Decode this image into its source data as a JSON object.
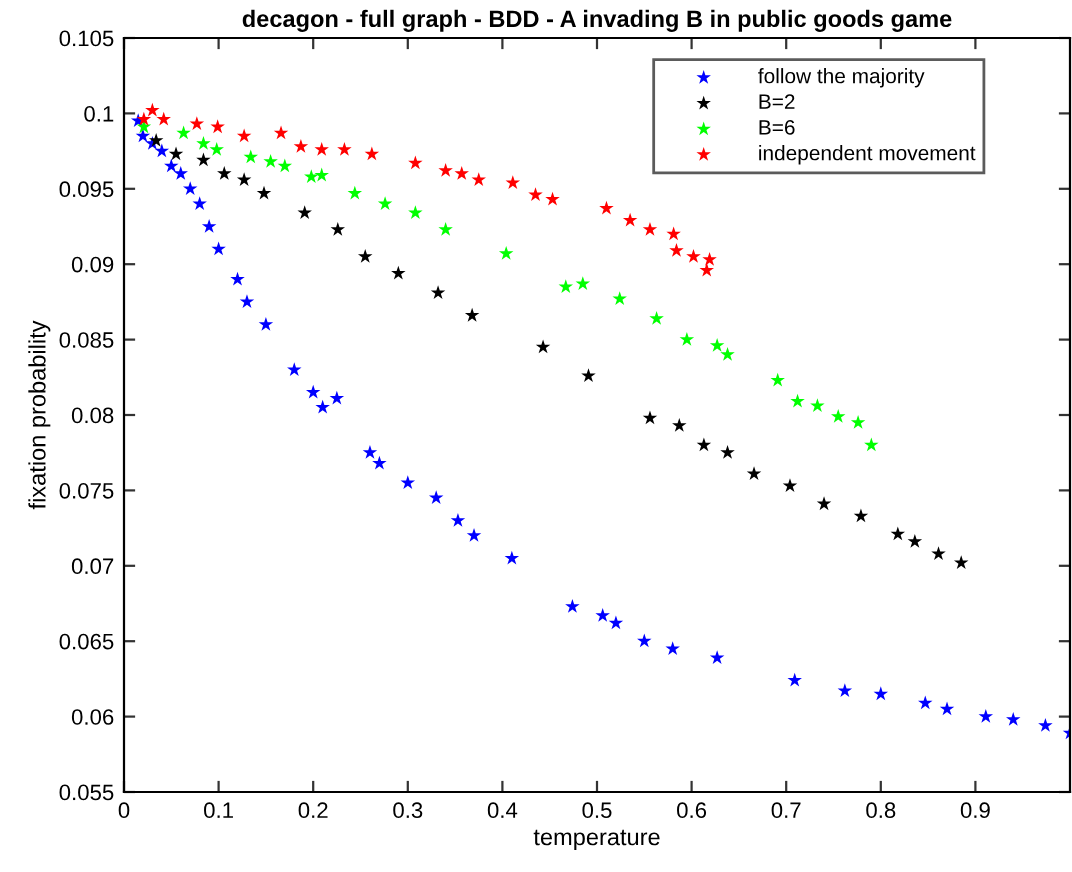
{
  "chart_data": {
    "type": "scatter",
    "title": "decagon - full graph - BDD - A invading B in public goods game",
    "xlabel": "temperature",
    "ylabel": "fixation probability",
    "xlim": [
      0,
      1
    ],
    "ylim": [
      0.055,
      0.105
    ],
    "xticks": [
      0,
      0.1,
      0.2,
      0.3,
      0.4,
      0.5,
      0.6,
      0.7,
      0.8,
      0.9
    ],
    "yticks": [
      0.055,
      0.06,
      0.065,
      0.07,
      0.075,
      0.08,
      0.085,
      0.09,
      0.095,
      0.1,
      0.105
    ],
    "marker": "star",
    "legend": "top right",
    "grid": false,
    "series": [
      {
        "name": "follow the majority",
        "color": "#0000ff",
        "x": [
          0.015,
          0.02,
          0.03,
          0.04,
          0.05,
          0.06,
          0.07,
          0.08,
          0.09,
          0.1,
          0.12,
          0.13,
          0.15,
          0.18,
          0.2,
          0.21,
          0.225,
          0.26,
          0.27,
          0.3,
          0.33,
          0.353,
          0.37,
          0.41,
          0.474,
          0.506,
          0.52,
          0.55,
          0.58,
          0.627,
          0.709,
          0.762,
          0.8,
          0.847,
          0.87,
          0.911,
          0.94,
          0.974,
          1.0
        ],
        "values": [
          0.0995,
          0.0985,
          0.098,
          0.0975,
          0.0965,
          0.096,
          0.095,
          0.094,
          0.0925,
          0.091,
          0.089,
          0.0875,
          0.086,
          0.083,
          0.0815,
          0.0805,
          0.0811,
          0.0775,
          0.0768,
          0.0755,
          0.0745,
          0.073,
          0.072,
          0.0705,
          0.0673,
          0.0667,
          0.0662,
          0.065,
          0.0645,
          0.0639,
          0.0624,
          0.0617,
          0.0615,
          0.0609,
          0.0605,
          0.06,
          0.0598,
          0.0594,
          0.0589
        ]
      },
      {
        "name": "B=2",
        "color": "#000000",
        "x": [
          0.034,
          0.055,
          0.084,
          0.106,
          0.127,
          0.148,
          0.191,
          0.226,
          0.255,
          0.29,
          0.332,
          0.368,
          0.443,
          0.491,
          0.556,
          0.587,
          0.613,
          0.638,
          0.666,
          0.704,
          0.74,
          0.779,
          0.818,
          0.836,
          0.861,
          0.885
        ],
        "values": [
          0.0982,
          0.0973,
          0.0969,
          0.096,
          0.0956,
          0.0947,
          0.0934,
          0.0923,
          0.0905,
          0.0894,
          0.0881,
          0.0866,
          0.0845,
          0.0826,
          0.0798,
          0.0793,
          0.078,
          0.0775,
          0.0761,
          0.0753,
          0.0741,
          0.0733,
          0.0721,
          0.0716,
          0.0708,
          0.0702
        ]
      },
      {
        "name": "B=6",
        "color": "#00ff00",
        "x": [
          0.021,
          0.063,
          0.084,
          0.098,
          0.134,
          0.155,
          0.17,
          0.198,
          0.209,
          0.244,
          0.276,
          0.308,
          0.34,
          0.404,
          0.467,
          0.485,
          0.524,
          0.563,
          0.595,
          0.627,
          0.638,
          0.691,
          0.712,
          0.733,
          0.755,
          0.776,
          0.79
        ],
        "values": [
          0.0991,
          0.0987,
          0.098,
          0.0976,
          0.0971,
          0.0968,
          0.0965,
          0.0958,
          0.0959,
          0.0947,
          0.094,
          0.0934,
          0.0923,
          0.0907,
          0.0885,
          0.0887,
          0.0877,
          0.0864,
          0.085,
          0.0846,
          0.084,
          0.0823,
          0.0809,
          0.0806,
          0.0799,
          0.0795,
          0.078
        ]
      },
      {
        "name": "independent movement",
        "color": "#ff0000",
        "x": [
          0.021,
          0.03,
          0.042,
          0.077,
          0.099,
          0.127,
          0.166,
          0.187,
          0.209,
          0.233,
          0.262,
          0.308,
          0.34,
          0.357,
          0.375,
          0.411,
          0.435,
          0.453,
          0.51,
          0.535,
          0.556,
          0.581,
          0.584,
          0.602,
          0.616,
          0.619
        ],
        "values": [
          0.0996,
          0.1002,
          0.0996,
          0.0993,
          0.0991,
          0.0985,
          0.0987,
          0.0978,
          0.0976,
          0.0976,
          0.0973,
          0.0967,
          0.0962,
          0.096,
          0.0956,
          0.0954,
          0.0946,
          0.0943,
          0.0937,
          0.0929,
          0.0923,
          0.092,
          0.0909,
          0.0905,
          0.0896,
          0.0903
        ]
      }
    ]
  }
}
